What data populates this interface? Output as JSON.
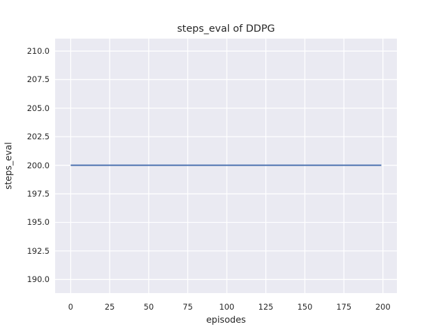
{
  "colors": {
    "figure_bg": "#ffffff",
    "plot_bg": "#eaeaf2",
    "grid": "#ffffff",
    "text": "#262626",
    "line": "#4c72b0"
  },
  "chart_data": {
    "type": "line",
    "title": "steps_eval of DDPG",
    "xlabel": "episodes",
    "ylabel": "steps_eval",
    "xlim": [
      -9.95,
      208.95
    ],
    "ylim": [
      188.81,
      211.09
    ],
    "xticks": [
      0,
      25,
      50,
      75,
      100,
      125,
      150,
      175,
      200
    ],
    "xtick_labels": [
      "0",
      "25",
      "50",
      "75",
      "100",
      "125",
      "150",
      "175",
      "200"
    ],
    "yticks": [
      190.0,
      192.5,
      195.0,
      197.5,
      200.0,
      202.5,
      205.0,
      207.5,
      210.0
    ],
    "ytick_labels": [
      "190.0",
      "192.5",
      "195.0",
      "197.5",
      "200.0",
      "202.5",
      "205.0",
      "207.5",
      "210.0"
    ],
    "grid": true,
    "legend": "none",
    "style": "seaborn-darkgrid",
    "series": [
      {
        "name": "DDPG",
        "color": "#4c72b0",
        "line_width": 2,
        "x": [
          0,
          199
        ],
        "y": [
          200,
          200
        ],
        "note": "constant value 200 for all episodes 0-199"
      }
    ]
  }
}
